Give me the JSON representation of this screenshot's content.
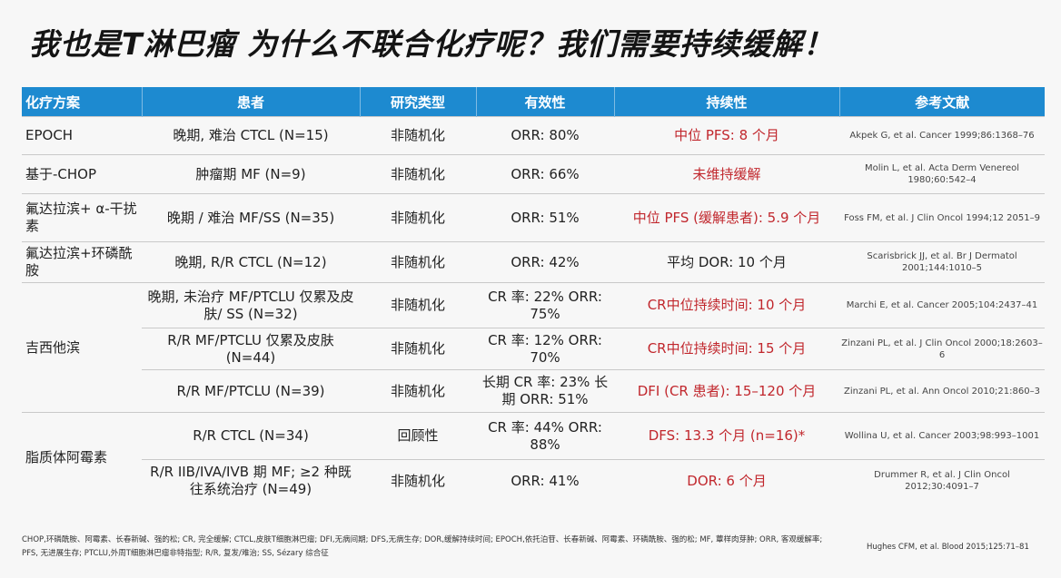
{
  "title": "我也是T淋巴瘤 为什么不联合化疗呢？我们需要持续缓解！",
  "table": {
    "headers": [
      "化疗方案",
      "患者",
      "研究类型",
      "有效性",
      "持续性",
      "参考文献"
    ],
    "rows": [
      {
        "regimen": "EPOCH",
        "patients": "晚期, 难治 CTCL (N=15)",
        "study": "非随机化",
        "efficacy": "ORR: 80%",
        "durability": "中位 PFS: 8 个月",
        "reference": "Akpek G, et al. Cancer 1999;86:1368–76"
      },
      {
        "regimen": "基于-CHOP",
        "patients": "肿瘤期 MF (N=9)",
        "study": "非随机化",
        "efficacy": "ORR: 66%",
        "durability": "未维持缓解",
        "reference": "Molin L, et al. Acta Derm Venereol 1980;60:542–4"
      },
      {
        "regimen": "氟达拉滨+ α-干扰素",
        "patients": "晚期 / 难治 MF/SS (N=35)",
        "study": "非随机化",
        "efficacy": "ORR: 51%",
        "durability": "中位 PFS (缓解患者): 5.9 个月",
        "reference": "Foss FM, et al. J Clin Oncol 1994;12 2051–9"
      },
      {
        "regimen": "氟达拉滨+环磷酰胺",
        "patients": "晚期, R/R CTCL (N=12)",
        "study": "非随机化",
        "efficacy": "ORR: 42%",
        "durability": "平均 DOR: 10 个月",
        "reference": "Scarisbrick JJ, et al. Br J Dermatol 2001;144:1010–5"
      },
      {
        "regimen": "吉西他滨",
        "patients": "晚期, 未治疗 MF/PTCLU 仅累及皮肤/ SS (N=32)",
        "study": "非随机化",
        "efficacy": "CR 率: 22% ORR: 75%",
        "durability": "CR中位持续时间: 10 个月",
        "reference": "Marchi E, et al. Cancer 2005;104:2437–41"
      },
      {
        "regimen": "",
        "patients": "R/R MF/PTCLU 仅累及皮肤 (N=44)",
        "study": "非随机化",
        "efficacy": "CR 率: 12% ORR: 70%",
        "durability": "CR中位持续时间: 15 个月",
        "reference": "Zinzani PL, et al. J Clin Oncol 2000;18:2603–6"
      },
      {
        "regimen": "",
        "patients": "R/R MF/PTCLU (N=39)",
        "study": "非随机化",
        "efficacy": "长期 CR 率: 23% 长期 ORR: 51%",
        "durability": "DFI (CR 患者): 15–120 个月",
        "reference": "Zinzani PL, et al. Ann Oncol 2010;21:860–3"
      },
      {
        "regimen": "脂质体阿霉素",
        "patients": "R/R CTCL (N=34)",
        "study": "回顾性",
        "efficacy": "CR 率: 44% ORR: 88%",
        "durability": "DFS: 13.3 个月 (n=16)*",
        "reference": "Wollina U, et al. Cancer 2003;98:993–1001"
      },
      {
        "regimen": "",
        "patients": "R/R IIB/IVA/IVB 期 MF; ≥2 种既往系统治疗 (N=49)",
        "study": "非随机化",
        "efficacy": "ORR: 41%",
        "durability": "DOR: 6 个月",
        "reference": "Drummer R, et al. J Clin Oncol 2012;30:4091–7"
      }
    ]
  },
  "footnote": "CHOP,环磷酰胺、阿霉素、长春新碱、强的松; CR, 完全缓解; CTCL,皮肤T细胞淋巴瘤; DFI,无病间期; DFS,无病生存; DOR,缓解持续时间; EPOCH,依托泊苷、长春新碱、阿霉素、环磷酰胺、强的松; MF, 蕈样肉芽肿; ORR, 客观缓解率; PFS, 无进展生存; PTCLU,外周T细胞淋巴瘤非特指型; R/R, 复发/难治; SS, Sézary 综合征",
  "citation": "Hughes CFM, et al. Blood 2015;125:71–81",
  "colors": {
    "header_bg": "#1d8ad0",
    "durability_red": "#c1272d"
  }
}
